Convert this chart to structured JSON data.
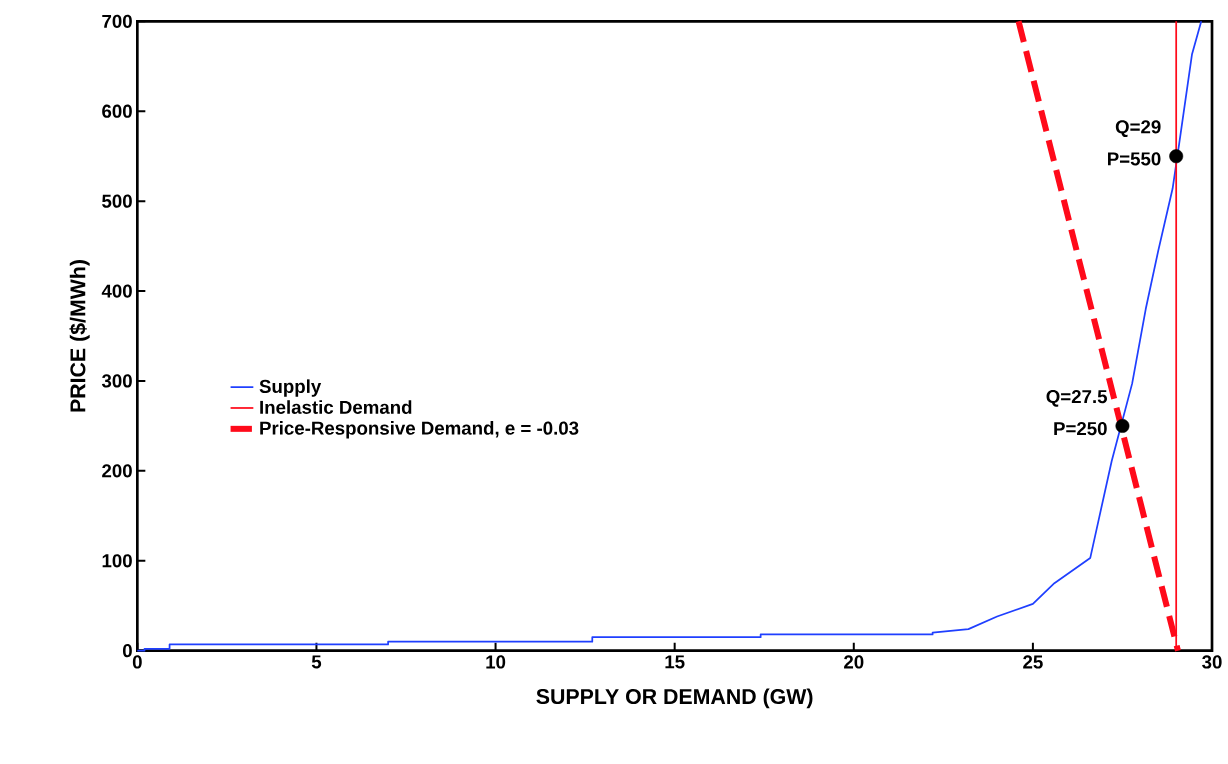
{
  "chart_data": {
    "type": "line",
    "xlabel": "SUPPLY OR DEMAND (GW)",
    "ylabel": "PRICE ($/MWh)",
    "xlim": [
      0,
      30
    ],
    "ylim": [
      0,
      700
    ],
    "xticks": [
      0,
      5,
      10,
      15,
      20,
      25,
      30
    ],
    "yticks": [
      0,
      100,
      200,
      300,
      400,
      500,
      600,
      700
    ],
    "grid": false,
    "legend": "left",
    "series": [
      {
        "name": "Supply",
        "color": "#1f3fff",
        "line_style": "solid",
        "x": [
          0,
          0.2,
          0.2,
          0.9,
          0.9,
          7,
          7,
          12.7,
          12.7,
          17.4,
          17.4,
          22.2,
          22.2,
          23.2,
          24,
          25,
          25.6,
          26.6,
          26.85,
          27.2,
          27.77,
          28.15,
          28.5,
          28.9,
          29.08,
          29.44,
          29.7
        ],
        "values": [
          0,
          0,
          2,
          2,
          7,
          7,
          10,
          10,
          15,
          15,
          18,
          18,
          20,
          24,
          38,
          52,
          75,
          103,
          148,
          211,
          297,
          380,
          445,
          514,
          563,
          663,
          700
        ]
      },
      {
        "name": "Inelastic Demand",
        "color": "#ff0a1a",
        "line_style": "solid",
        "x": [
          29,
          29
        ],
        "values": [
          0,
          700
        ]
      },
      {
        "name": "Price-Responsive Demand, e = -0.03",
        "color": "#ff0a1a",
        "line_style": "dashed",
        "x": [
          24.6,
          29.05
        ],
        "values": [
          700,
          0
        ]
      },
      {
        "type": "scatter",
        "color": "#000000",
        "marker": "circle",
        "x": [
          27.5,
          29
        ],
        "values": [
          250,
          550
        ]
      }
    ],
    "annotations": [
      {
        "text": "Q=27.5 P=250",
        "x": 27.5,
        "y": 250
      },
      {
        "text": "Q=29 P=550",
        "x": 29,
        "y": 550
      }
    ]
  }
}
